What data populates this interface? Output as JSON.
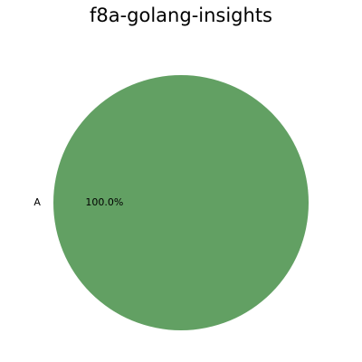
{
  "chart_data": {
    "type": "pie",
    "title": "f8a-golang-insights",
    "categories": [
      "A"
    ],
    "values": [
      100
    ],
    "percent_labels": [
      "100.0%"
    ],
    "colors": [
      "#62a063"
    ]
  }
}
